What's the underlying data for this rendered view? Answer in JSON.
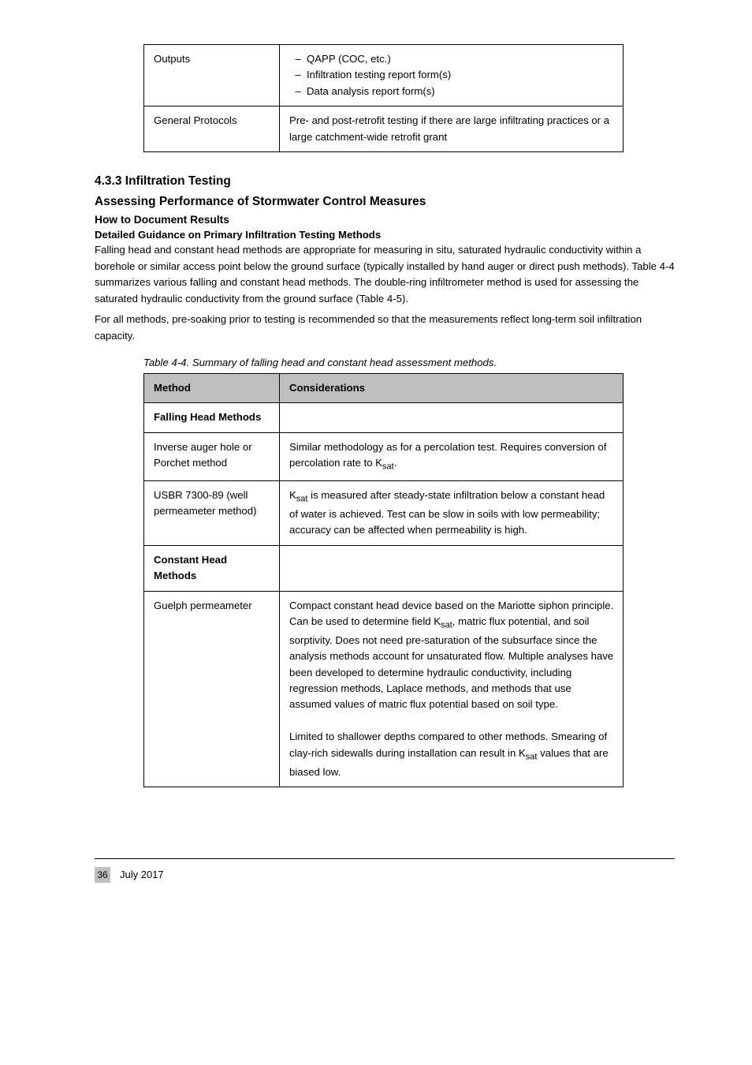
{
  "page_number": "36",
  "footer_text": "July 2017",
  "table1": {
    "columns": [
      "",
      ""
    ],
    "rows": [
      {
        "c1": "Outputs",
        "c2_lines": [
          {
            "bullet": "–",
            "text": "QAPP (COC, etc.)"
          },
          {
            "bullet": "–",
            "text": "Infiltration testing report form(s)"
          },
          {
            "bullet": "–",
            "text": "Data analysis report form(s)"
          }
        ]
      },
      {
        "c1": "General Protocols",
        "c2_plain": "Pre- and post-retrofit testing if there are large infiltrating practices or a large catchment-wide retrofit grant"
      }
    ]
  },
  "section": {
    "num_title": "4.3.3 Infiltration Testing",
    "heading": "Assessing Performance of Stormwater Control Measures",
    "sub1": "How to Document Results",
    "sub2": "Detailed Guidance on Primary Infiltration Testing Methods",
    "paras": [
      "Falling head and constant head methods are appropriate for measuring in situ, saturated hydraulic conductivity within a borehole or similar access point below the ground surface (typically installed by hand auger or direct push methods). Table 4-4 summarizes various falling and constant head methods. The double-ring infiltrometer method is used for assessing the saturated hydraulic conductivity from the ground surface (Table 4-5).",
      "For all methods, pre-soaking prior to testing is recommended so that the measurements reflect long-term soil infiltration capacity."
    ]
  },
  "table2_caption": "Table 4-4. Summary of falling head and constant head assessment methods.",
  "table2": {
    "header": [
      "Method",
      "Considerations"
    ],
    "rows": [
      {
        "c1_bold": "Falling Head Methods",
        "c2": ""
      },
      {
        "c1": "Inverse auger hole or Porchet method",
        "c2": "Similar methodology as for a percolation test. Requires conversion of percolation rate to K<sub>sat</sub>."
      },
      {
        "c1": "USBR 7300-89 (well permeameter method)",
        "c2": "K<sub>sat</sub> is measured after steady-state infiltration below a constant head of water is achieved. Test can be slow in soils with low permeability; accuracy can be affected when permeability is high."
      },
      {
        "c1_bold": "Constant Head Methods",
        "c2": ""
      },
      {
        "c1": "Guelph permeameter",
        "c2": "Compact constant head device based on the Mariotte siphon principle. Can be used to determine field K<sub>sat</sub>, matric flux potential, and soil sorptivity. Does not need pre-saturation of the subsurface since the analysis methods account for unsaturated flow. Multiple analyses have been developed to determine hydraulic conductivity, including regression methods, Laplace methods, and methods that use assumed values of matric flux potential based on soil type.<br><br>Limited to shallower depths compared to other methods. Smearing of clay-rich sidewalls during installation can result in K<sub>sat</sub> values that are biased low."
      }
    ]
  },
  "colors": {
    "header_bg": "#bfbfbf",
    "border": "#000000",
    "page_bg": "#ffffff",
    "text": "#000000"
  }
}
